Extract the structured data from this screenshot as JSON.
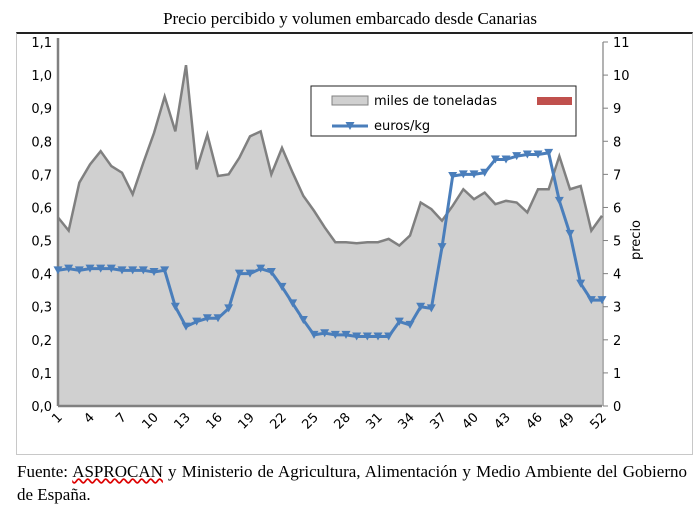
{
  "chart_data": {
    "type": "area+line",
    "title": "Precio percibido y volumen embarcado desde Canarias",
    "x": [
      1,
      2,
      3,
      4,
      5,
      6,
      7,
      8,
      9,
      10,
      11,
      12,
      13,
      14,
      15,
      16,
      17,
      18,
      19,
      20,
      21,
      22,
      23,
      24,
      25,
      26,
      27,
      28,
      29,
      30,
      31,
      32,
      33,
      34,
      35,
      36,
      37,
      38,
      39,
      40,
      41,
      42,
      43,
      44,
      45,
      46,
      47,
      48,
      49,
      50,
      51,
      52
    ],
    "x_ticks": [
      "1",
      "4",
      "7",
      "10",
      "13",
      "16",
      "19",
      "22",
      "25",
      "28",
      "31",
      "34",
      "37",
      "40",
      "43",
      "46",
      "49",
      "52"
    ],
    "left_ticks": [
      "0,0",
      "0,1",
      "0,2",
      "0,3",
      "0,4",
      "0,5",
      "0,6",
      "0,7",
      "0,8",
      "0,9",
      "1,0",
      "1,1"
    ],
    "right_ticks": [
      "0",
      "1",
      "2",
      "3",
      "4",
      "5",
      "6",
      "7",
      "8",
      "9",
      "10",
      "11"
    ],
    "ylim_left": [
      0,
      1.1
    ],
    "ylim_right": [
      0,
      11
    ],
    "ylabel_right": "precio",
    "legend_position": "top-right",
    "series": [
      {
        "name": "miles de toneladas",
        "type": "area",
        "axis": "right",
        "color": "#d0d0d0",
        "line_color": "#808080",
        "values": [
          5.7,
          5.3,
          6.75,
          7.3,
          7.7,
          7.25,
          7.05,
          6.4,
          7.35,
          8.25,
          9.35,
          8.3,
          10.3,
          7.15,
          8.2,
          6.95,
          7.0,
          7.5,
          8.15,
          8.3,
          7.0,
          7.8,
          7.05,
          6.35,
          5.9,
          5.4,
          4.95,
          4.95,
          4.92,
          4.95,
          4.95,
          5.05,
          4.85,
          5.15,
          6.15,
          5.95,
          5.6,
          6.05,
          6.55,
          6.25,
          6.45,
          6.1,
          6.2,
          6.15,
          5.85,
          6.55,
          6.55,
          7.55,
          6.55,
          6.65,
          5.3,
          5.75
        ]
      },
      {
        "name": "euros/kg",
        "type": "line",
        "axis": "left",
        "color": "#4a7ebb",
        "marker": "triangle-down",
        "values": [
          0.41,
          0.415,
          0.41,
          0.415,
          0.415,
          0.415,
          0.41,
          0.41,
          0.41,
          0.405,
          0.41,
          0.3,
          0.24,
          0.255,
          0.265,
          0.265,
          0.295,
          0.4,
          0.4,
          0.415,
          0.405,
          0.36,
          0.31,
          0.26,
          0.215,
          0.22,
          0.215,
          0.215,
          0.21,
          0.21,
          0.21,
          0.21,
          0.255,
          0.245,
          0.3,
          0.295,
          0.48,
          0.695,
          0.7,
          0.7,
          0.705,
          0.745,
          0.745,
          0.755,
          0.76,
          0.76,
          0.765,
          0.62,
          0.52,
          0.37,
          0.32,
          0.32
        ]
      }
    ],
    "legend_extra_color": "#c0504d"
  },
  "footer": {
    "before": "Fuente: ",
    "source": "ASPROCAN",
    "after": " y Ministerio de Agricultura, Alimentación y Medio Ambiente del Gobierno de España."
  }
}
